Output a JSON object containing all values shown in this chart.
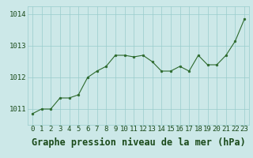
{
  "x": [
    0,
    1,
    2,
    3,
    4,
    5,
    6,
    7,
    8,
    9,
    10,
    11,
    12,
    13,
    14,
    15,
    16,
    17,
    18,
    19,
    20,
    21,
    22,
    23
  ],
  "y": [
    1010.85,
    1011.0,
    1011.0,
    1011.35,
    1011.35,
    1011.45,
    1012.0,
    1012.2,
    1012.35,
    1012.7,
    1012.7,
    1012.65,
    1012.7,
    1012.5,
    1012.2,
    1012.2,
    1012.35,
    1012.2,
    1012.7,
    1012.4,
    1012.4,
    1012.7,
    1013.15,
    1013.85
  ],
  "line_color": "#2d6a2d",
  "marker_color": "#2d6a2d",
  "bg_color": "#cce8e8",
  "grid_color": "#99cccc",
  "title": "Graphe pression niveau de la mer (hPa)",
  "ylabel_ticks": [
    1011,
    1012,
    1013,
    1014
  ],
  "xlim": [
    -0.5,
    23.5
  ],
  "ylim": [
    1010.5,
    1014.25
  ],
  "title_color": "#1a4a1a",
  "title_fontsize": 8.5,
  "tick_fontsize": 6.5,
  "tick_color": "#1a4a1a"
}
